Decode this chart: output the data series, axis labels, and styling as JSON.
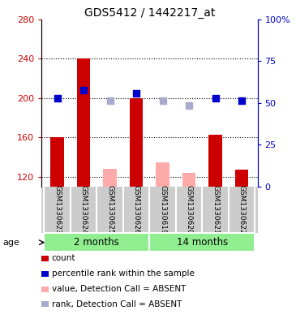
{
  "title": "GDS5412 / 1442217_at",
  "samples": [
    "GSM1330623",
    "GSM1330624",
    "GSM1330625",
    "GSM1330626",
    "GSM1330619",
    "GSM1330620",
    "GSM1330621",
    "GSM1330622"
  ],
  "groups": [
    {
      "label": "2 months",
      "indices": [
        0,
        1,
        2,
        3
      ],
      "color": "#90EE90"
    },
    {
      "label": "14 months",
      "indices": [
        4,
        5,
        6,
        7
      ],
      "color": "#90EE90"
    }
  ],
  "ylim_left": [
    110,
    280
  ],
  "ylim_right": [
    0,
    100
  ],
  "yticks_left": [
    120,
    160,
    200,
    240,
    280
  ],
  "yticks_right": [
    0,
    25,
    50,
    75,
    100
  ],
  "ytick_labels_right": [
    "0",
    "25",
    "50",
    "75",
    "100%"
  ],
  "red_bars": [
    160,
    240,
    null,
    200,
    null,
    null,
    163,
    127
  ],
  "blue_squares": [
    200,
    208,
    null,
    205,
    null,
    null,
    200,
    197
  ],
  "pink_bars": [
    null,
    null,
    128,
    null,
    135,
    124,
    null,
    null
  ],
  "lilac_squares": [
    null,
    null,
    197,
    null,
    197,
    192,
    null,
    null
  ],
  "red_bar_color": "#cc0000",
  "blue_sq_color": "#0000cc",
  "pink_bar_color": "#ffaaaa",
  "lilac_sq_color": "#aaaacc",
  "bar_width": 0.5,
  "marker_size": 40,
  "grid_color": "black",
  "grid_linestyle": "dotted",
  "background_plot": "white",
  "sample_bg_color": "#cccccc",
  "group_color": "#90EE90",
  "legend_items": [
    {
      "color": "#cc0000",
      "label": "count"
    },
    {
      "color": "#0000cc",
      "label": "percentile rank within the sample"
    },
    {
      "color": "#ffaaaa",
      "label": "value, Detection Call = ABSENT"
    },
    {
      "color": "#aaaacc",
      "label": "rank, Detection Call = ABSENT"
    }
  ],
  "age_label": "age",
  "left_axis_color": "#cc0000",
  "right_axis_color": "#0000cc"
}
